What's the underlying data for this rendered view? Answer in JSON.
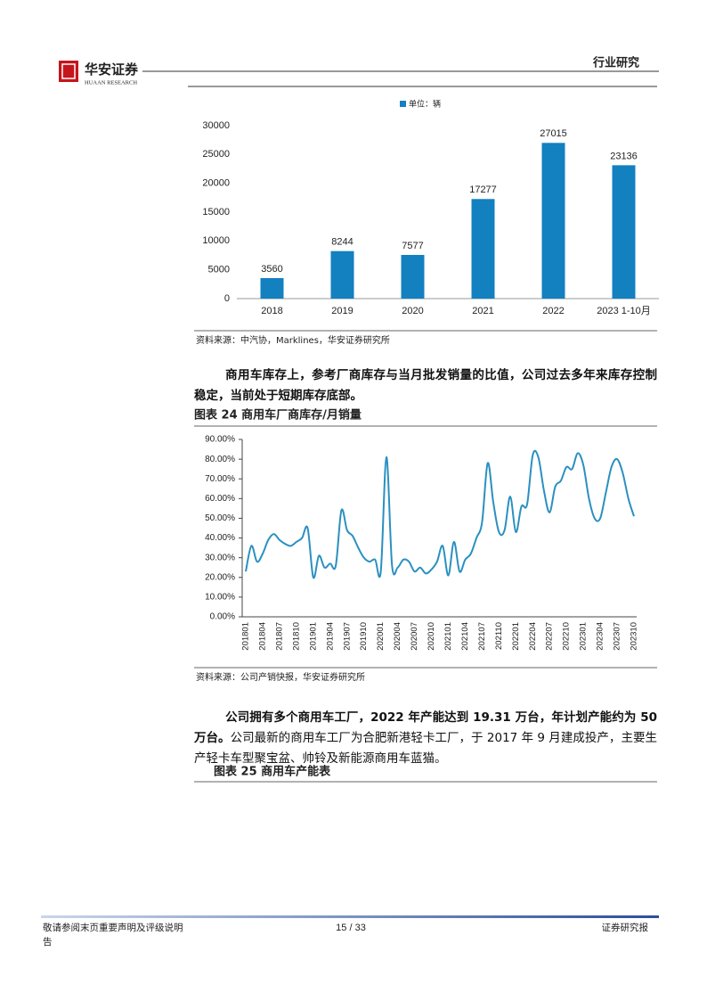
{
  "header": {
    "logo_cn": "华安证券",
    "logo_en": "HUAAN RESEARCH",
    "section": "行业研究"
  },
  "chart_data": [
    {
      "type": "bar",
      "categories": [
        "2018",
        "2019",
        "2020",
        "2021",
        "2022",
        "2023 1-10月"
      ],
      "series": [
        {
          "name": "单位：辆",
          "color": "#1380c0",
          "values": [
            3560,
            8244,
            7577,
            17277,
            27015,
            23136
          ]
        }
      ],
      "ylim": [
        0,
        30000
      ],
      "yticks": [
        0,
        5000,
        10000,
        15000,
        20000,
        25000,
        30000
      ],
      "source": "资料来源：中汽协，Marklines，华安证券研究所"
    },
    {
      "type": "line",
      "title": "图表 24 商用车厂商库存/月销量",
      "categories": [
        "201801",
        null,
        null,
        "201804",
        null,
        null,
        "201807",
        null,
        null,
        "201810",
        null,
        null,
        "201901",
        null,
        null,
        "201904",
        null,
        null,
        "201907",
        null,
        null,
        "201910",
        null,
        null,
        "202001",
        null,
        null,
        "202004",
        null,
        null,
        "202007",
        null,
        null,
        "202010",
        null,
        null,
        "202101",
        null,
        null,
        "202104",
        null,
        null,
        "202107",
        null,
        null,
        "202110",
        null,
        null,
        "202201",
        null,
        null,
        "202204",
        null,
        null,
        "202207",
        null,
        null,
        "202210",
        null,
        null,
        "202301",
        null,
        null,
        "202304",
        null,
        null,
        "202307",
        null,
        null,
        "202310"
      ],
      "color": "#2a90c0",
      "values": [
        23,
        36,
        28,
        32,
        39,
        42,
        39,
        37,
        36,
        38,
        40,
        45,
        20,
        31,
        25,
        27,
        26,
        54,
        44,
        41,
        35,
        30,
        28,
        29,
        23,
        81,
        26,
        25,
        29,
        28,
        23,
        25,
        22,
        24,
        28,
        36,
        21,
        38,
        23,
        29,
        32,
        40,
        48,
        78,
        58,
        43,
        44,
        61,
        43,
        56,
        57,
        82,
        81,
        64,
        53,
        66,
        69,
        76,
        75,
        83,
        77,
        60,
        50,
        50,
        63,
        76,
        80,
        73,
        60,
        51
      ],
      "ylim": [
        0,
        90
      ],
      "yticks": [
        {
          "value": 0,
          "label": "0.00%"
        },
        {
          "value": 10,
          "label": "10.00%"
        },
        {
          "value": 20,
          "label": "20.00%"
        },
        {
          "value": 30,
          "label": "30.00%"
        },
        {
          "value": 40,
          "label": "40.00%"
        },
        {
          "value": 50,
          "label": "50.00%"
        },
        {
          "value": 60,
          "label": "60.00%"
        },
        {
          "value": 70,
          "label": "70.00%"
        },
        {
          "value": 80,
          "label": "80.00%"
        },
        {
          "value": 90,
          "label": "90.00%"
        }
      ],
      "source": "资料来源：公司产销快报，华安证券研究所"
    }
  ],
  "paragraphs": [
    {
      "bold": "商用车库存上，参考厂商库存与当月批发销量的比值，公司过去多年来库存控制稳定，当前处于短期库存底部。"
    },
    {
      "bold": "公司拥有多个商用车工厂，2022 年产能达到 19.31 万台，年计划产能约为 50 万台。",
      "normal": "公司最新的商用车工厂为合肥新港轻卡工厂，于 2017 年 9 月建成投产，主要生产轻卡车型聚宝盆、帅铃及新能源商用车蓝猫。"
    }
  ],
  "table_title": "图表 25 商用车产能表",
  "footer": {
    "left": "敬请参阅末页重要声明及评级说明",
    "page": "15 / 33",
    "right": "证券研究报",
    "wrap": "告"
  }
}
